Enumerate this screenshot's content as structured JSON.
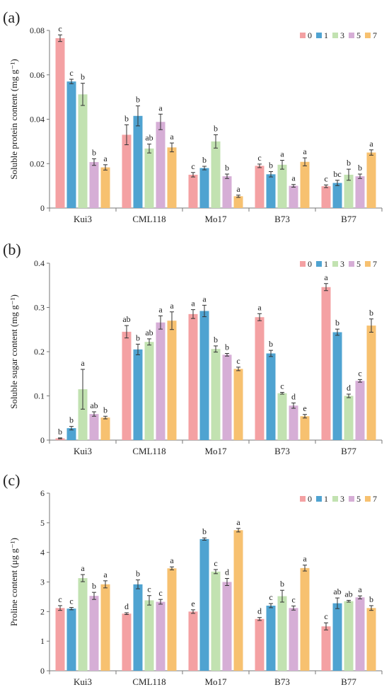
{
  "colors": [
    "#f4a1a3",
    "#4fa3d1",
    "#c2e2b1",
    "#d6aed6",
    "#f7c170"
  ],
  "legend": [
    "0",
    "1",
    "3",
    "5",
    "7"
  ],
  "categories": [
    "Kui3",
    "CML118",
    "Mo17",
    "B73",
    "B77"
  ],
  "chart_data": [
    {
      "type": "bar",
      "panel_label": "(a)",
      "ylabel": "Soluble protein content (mg g⁻¹)",
      "ylim": [
        0,
        0.08
      ],
      "yticks": [
        0,
        0.02,
        0.04,
        0.06,
        0.08
      ],
      "ytick_labels": [
        "0",
        "0.02",
        "0.04",
        "0.06",
        "0.08"
      ],
      "legend_position": "top-right",
      "categories": [
        "Kui3",
        "CML118",
        "Mo17",
        "B73",
        "B77"
      ],
      "series": [
        {
          "name": "0",
          "values": [
            0.0765,
            0.033,
            0.015,
            0.019,
            0.0098
          ],
          "errors": [
            0.0015,
            0.0045,
            0.001,
            0.0008,
            0.0006
          ],
          "letters": [
            "c",
            "b",
            "c",
            "c",
            "c"
          ]
        },
        {
          "name": "1",
          "values": [
            0.057,
            0.0415,
            0.018,
            0.0152,
            0.0113
          ],
          "errors": [
            0.001,
            0.0045,
            0.0008,
            0.0012,
            0.0012
          ],
          "letters": [
            "c",
            "b",
            "b",
            "b",
            "bc"
          ]
        },
        {
          "name": "3",
          "values": [
            0.0512,
            0.0268,
            0.03,
            0.0195,
            0.015
          ],
          "errors": [
            0.005,
            0.002,
            0.003,
            0.002,
            0.0025
          ],
          "letters": [
            "b",
            "ab",
            "b",
            "a",
            "b"
          ]
        },
        {
          "name": "5",
          "values": [
            0.0207,
            0.0388,
            0.0143,
            0.01,
            0.0143
          ],
          "errors": [
            0.0015,
            0.0035,
            0.001,
            0.0006,
            0.001
          ],
          "letters": [
            "b",
            "a",
            "b",
            "a",
            "b"
          ]
        },
        {
          "name": "7",
          "values": [
            0.0183,
            0.0273,
            0.0053,
            0.0208,
            0.025
          ],
          "errors": [
            0.0012,
            0.002,
            0.0005,
            0.0018,
            0.0012
          ],
          "letters": [
            "a",
            "a",
            "a",
            "a",
            "a"
          ]
        }
      ]
    },
    {
      "type": "bar",
      "panel_label": "(b)",
      "ylabel": "Soluble sugar content (mg g⁻¹)",
      "ylim": [
        0,
        0.4
      ],
      "yticks": [
        0,
        0.1,
        0.2,
        0.3,
        0.4
      ],
      "ytick_labels": [
        "0",
        "0.1",
        "0.2",
        "0.3",
        "0.4"
      ],
      "legend_position": "top-right",
      "categories": [
        "Kui3",
        "CML118",
        "Mo17",
        "B73",
        "B77"
      ],
      "series": [
        {
          "name": "0",
          "values": [
            0.004,
            0.245,
            0.285,
            0.278,
            0.346
          ],
          "errors": [
            0.001,
            0.014,
            0.01,
            0.008,
            0.008
          ],
          "letters": [
            "b",
            "ab",
            "a",
            "a",
            "a"
          ]
        },
        {
          "name": "1",
          "values": [
            0.027,
            0.205,
            0.292,
            0.196,
            0.244
          ],
          "errors": [
            0.004,
            0.012,
            0.013,
            0.007,
            0.007
          ],
          "letters": [
            "b",
            "b",
            "a",
            "b",
            "b"
          ]
        },
        {
          "name": "3",
          "values": [
            0.115,
            0.222,
            0.206,
            0.106,
            0.1
          ],
          "errors": [
            0.045,
            0.007,
            0.007,
            0.002,
            0.004
          ],
          "letters": [
            "a",
            "ab",
            "b",
            "c",
            "d"
          ]
        },
        {
          "name": "5",
          "values": [
            0.059,
            0.266,
            0.193,
            0.078,
            0.134
          ],
          "errors": [
            0.005,
            0.015,
            0.003,
            0.006,
            0.003
          ],
          "letters": [
            "ab",
            "a",
            "b",
            "d",
            "c"
          ]
        },
        {
          "name": "7",
          "values": [
            0.051,
            0.27,
            0.161,
            0.054,
            0.259
          ],
          "errors": [
            0.003,
            0.02,
            0.004,
            0.004,
            0.015
          ],
          "letters": [
            "b",
            "a",
            "c",
            "e",
            "b"
          ]
        }
      ]
    },
    {
      "type": "bar",
      "panel_label": "(c)",
      "ylabel": "Proline content (μg g⁻¹)",
      "ylim": [
        0,
        6
      ],
      "yticks": [
        0,
        1,
        2,
        3,
        4,
        5,
        6
      ],
      "ytick_labels": [
        "0",
        "1",
        "2",
        "3",
        "4",
        "5",
        "6"
      ],
      "legend_position": "top-right",
      "categories": [
        "Kui3",
        "CML118",
        "Mo17",
        "B73",
        "B77"
      ],
      "series": [
        {
          "name": "0",
          "values": [
            2.12,
            1.93,
            2.0,
            1.75,
            1.5
          ],
          "errors": [
            0.08,
            0.03,
            0.06,
            0.05,
            0.12
          ],
          "letters": [
            "c",
            "d",
            "e",
            "d",
            "c"
          ]
        },
        {
          "name": "1",
          "values": [
            2.1,
            2.92,
            4.45,
            2.2,
            2.28
          ],
          "errors": [
            0.04,
            0.15,
            0.04,
            0.07,
            0.18
          ],
          "letters": [
            "c",
            "b",
            "b",
            "c",
            "ab"
          ]
        },
        {
          "name": "3",
          "values": [
            3.13,
            2.38,
            3.35,
            2.52,
            2.35
          ],
          "errors": [
            0.12,
            0.16,
            0.07,
            0.2,
            0.03
          ],
          "letters": [
            "a",
            "c",
            "c",
            "b",
            "ab"
          ]
        },
        {
          "name": "5",
          "values": [
            2.53,
            2.33,
            3.0,
            2.12,
            2.48
          ],
          "errors": [
            0.12,
            0.08,
            0.12,
            0.07,
            0.05
          ],
          "letters": [
            "b",
            "c",
            "d",
            "c",
            "a"
          ]
        },
        {
          "name": "7",
          "values": [
            2.92,
            3.46,
            4.75,
            3.47,
            2.12
          ],
          "errors": [
            0.12,
            0.05,
            0.06,
            0.1,
            0.08
          ],
          "letters": [
            "a",
            "a",
            "a",
            "a",
            "b"
          ]
        }
      ]
    }
  ]
}
